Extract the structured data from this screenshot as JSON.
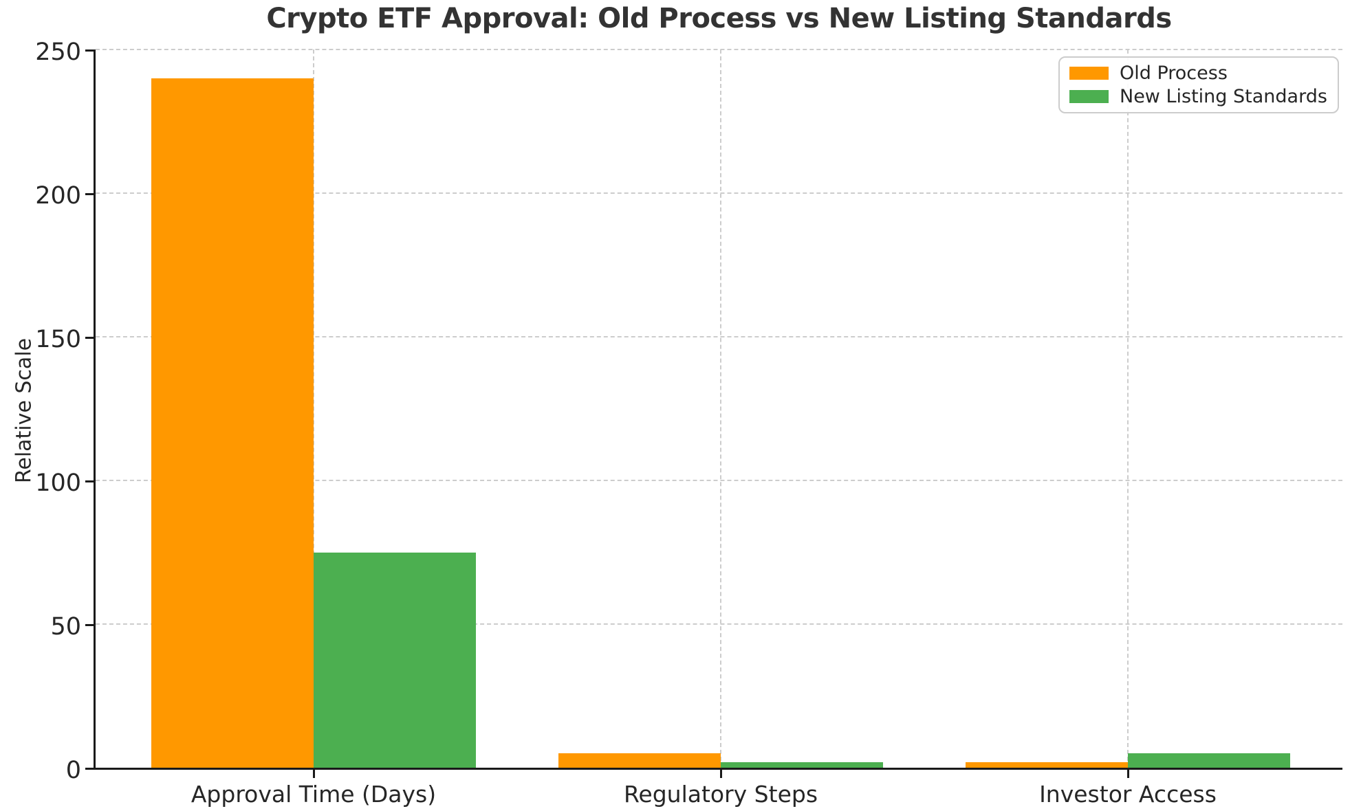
{
  "chart_data": {
    "type": "bar",
    "title": "Crypto ETF Approval: Old Process vs New Listing Standards",
    "xlabel": "",
    "ylabel": "Relative Scale",
    "categories": [
      "Approval Time (Days)",
      "Regulatory Steps",
      "Investor Access"
    ],
    "series": [
      {
        "name": "Old Process",
        "color": "#FF9800",
        "values": [
          240,
          5,
          2
        ]
      },
      {
        "name": "New Listing Standards",
        "color": "#4CAF50",
        "values": [
          75,
          2,
          5
        ]
      }
    ],
    "ylim": [
      0,
      250
    ],
    "yticks": [
      0,
      50,
      100,
      150,
      200,
      250
    ],
    "grid": true,
    "grid_style": "dashed",
    "legend_position": "upper right"
  },
  "colors": {
    "old_process": "#FF9800",
    "new_listing_standards": "#4CAF50",
    "gridline": "#cccccc",
    "axis": "#1a1a1a",
    "text": "#262626",
    "title": "#333333",
    "background": "#ffffff"
  }
}
